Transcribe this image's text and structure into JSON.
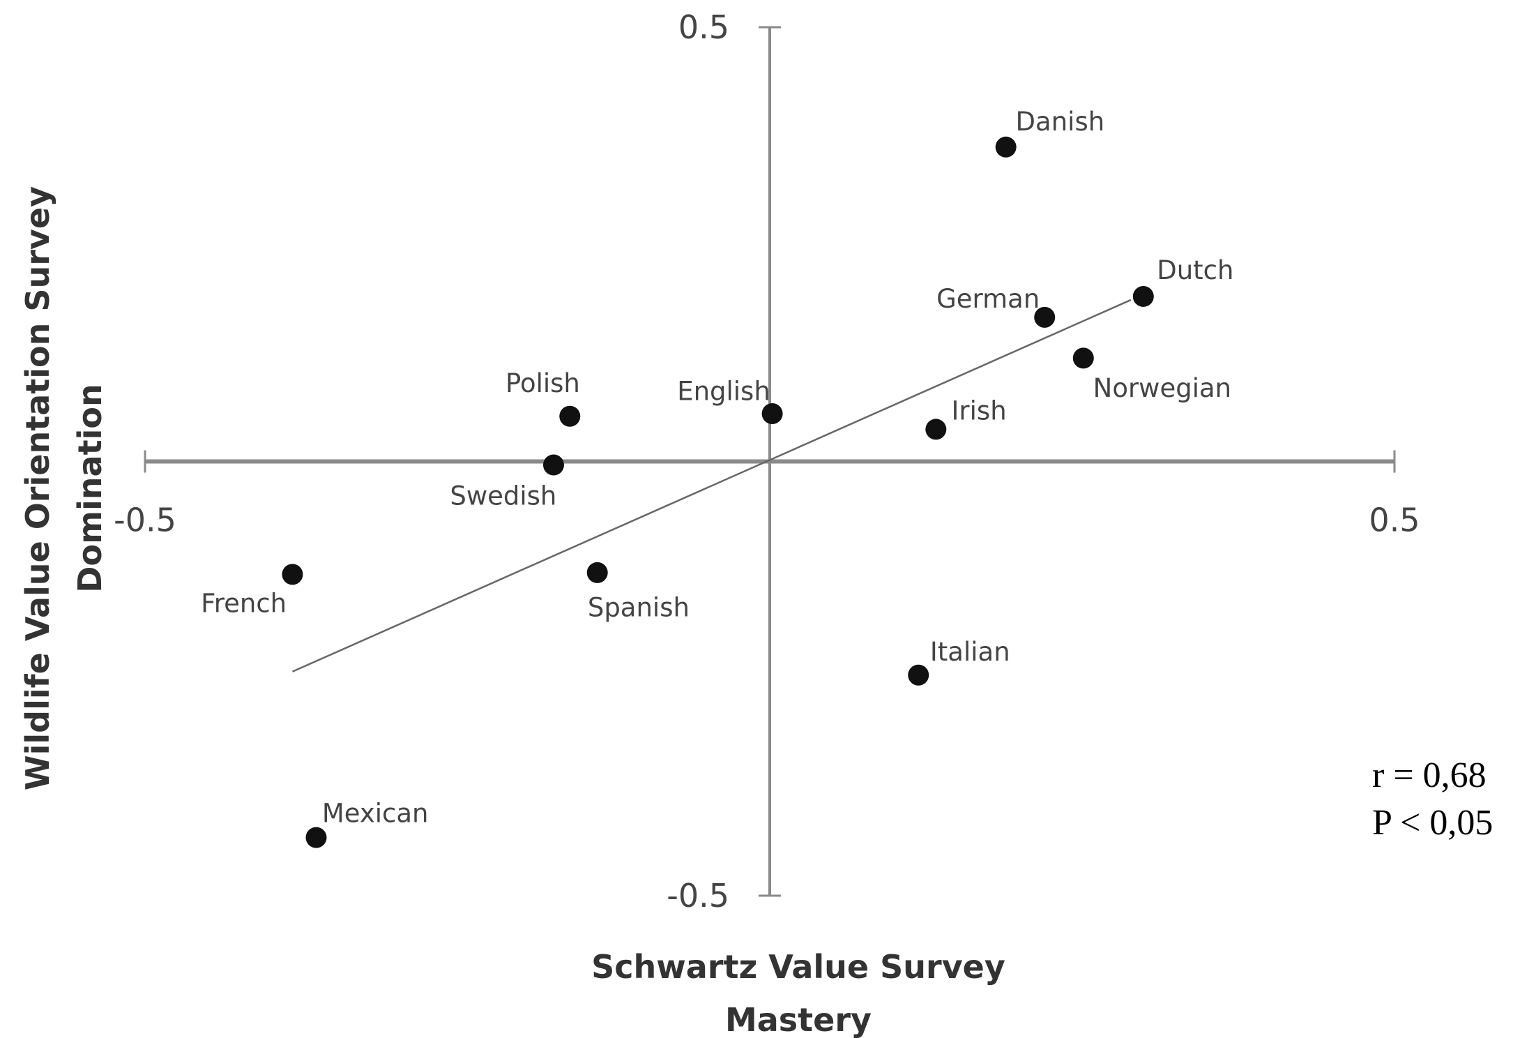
{
  "chart_data": {
    "type": "scatter",
    "xlabel": [
      "Schwartz Value Survey",
      "Mastery"
    ],
    "ylabel": [
      "Wildlife Value Orientation Survey",
      "Domination"
    ],
    "labels": [
      "Danish",
      "Dutch",
      "German",
      "Norwegian",
      "Irish",
      "English",
      "Polish",
      "Swedish",
      "Spanish",
      "French",
      "Italian",
      "Mexican"
    ],
    "x": [
      0.189,
      0.299,
      0.22,
      0.251,
      0.133,
      0.002,
      -0.16,
      -0.173,
      -0.138,
      -0.382,
      0.119,
      -0.363
    ],
    "y": [
      0.362,
      0.19,
      0.166,
      0.119,
      0.037,
      0.055,
      0.052,
      -0.004,
      -0.128,
      -0.13,
      -0.246,
      -0.433
    ],
    "color": "#111111",
    "trendline": {
      "x": [
        -0.382,
        0.289
      ],
      "y": [
        -0.242,
        0.186
      ]
    },
    "xlim": [
      -0.5,
      0.5
    ],
    "ylim": [
      -0.5,
      0.5
    ],
    "xticks": [
      -0.5,
      0.5
    ],
    "yticks": [
      -0.5,
      0.5
    ],
    "annotations": [
      "r = 0,68",
      "P < 0,05"
    ]
  }
}
